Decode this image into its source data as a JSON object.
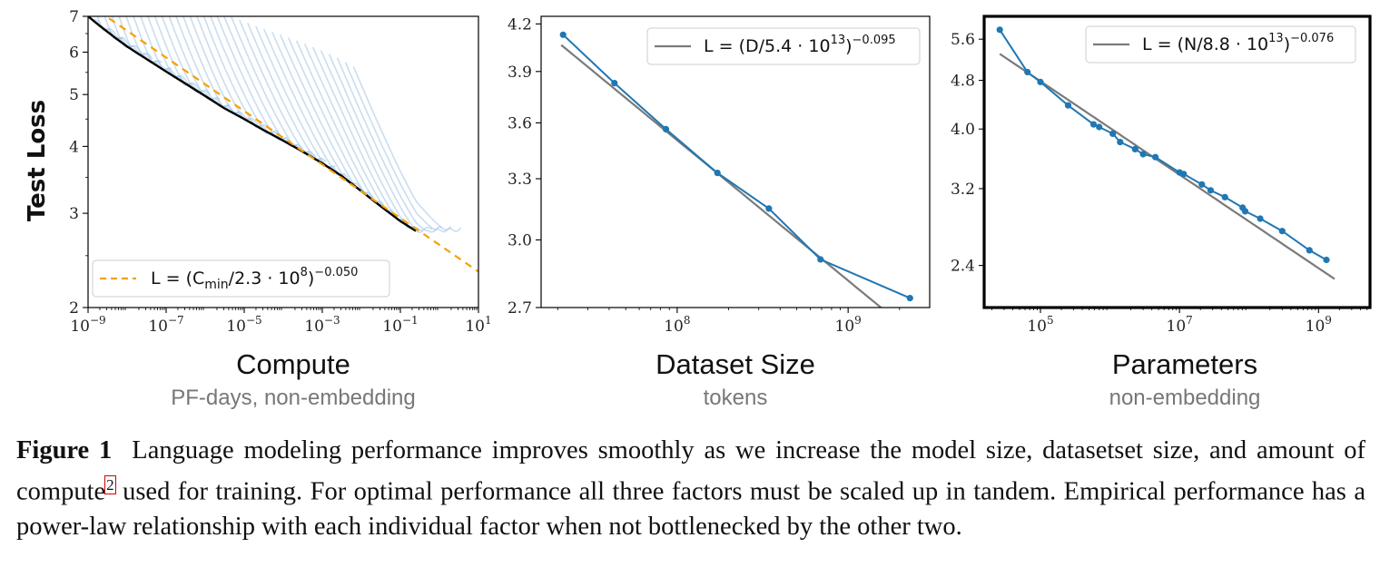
{
  "chart_data": [
    {
      "type": "line",
      "xscale": "log",
      "yscale": "log",
      "xlim": [
        1e-09,
        10
      ],
      "ylim": [
        2,
        7
      ],
      "xticks": [
        {
          "v": 1e-09,
          "b": "10",
          "e": "−9"
        },
        {
          "v": 1e-07,
          "b": "10",
          "e": "−7"
        },
        {
          "v": 1e-05,
          "b": "10",
          "e": "−5"
        },
        {
          "v": 0.001,
          "b": "10",
          "e": "−3"
        },
        {
          "v": 0.1,
          "b": "10",
          "e": "−1"
        },
        {
          "v": 10,
          "b": "10",
          "e": "1"
        }
      ],
      "yticks": [
        {
          "v": 2,
          "t": "2"
        },
        {
          "v": 3,
          "t": "3"
        },
        {
          "v": 4,
          "t": "4"
        },
        {
          "v": 5,
          "t": "5"
        },
        {
          "v": 6,
          "t": "6"
        },
        {
          "v": 7,
          "t": "7"
        }
      ],
      "ylabel": "Test Loss",
      "xlabel": "Compute",
      "xsub": "PF-days, non-embedding",
      "legend": {
        "position": "lower-left",
        "label": "L = (Cmin/2.3 · 10^8)^−0.050"
      },
      "legend_parts": {
        "pre": "L = (C",
        "sub": "min",
        "mid": "/2.3 · 10",
        "sup1": "8",
        "close": ")",
        "sup2": "−0.050"
      },
      "fit": {
        "name": "L = (Cmin/2.3 · 10^8)^−0.050",
        "coef": 230000000.0,
        "exp": -0.05,
        "style": "dashed",
        "color": "#f5a100"
      },
      "frontier": {
        "color": "#000000",
        "x": [
          1e-09,
          2e-09,
          5e-09,
          1e-08,
          2e-08,
          5e-08,
          1e-07,
          3e-07,
          1e-06,
          3e-06,
          1e-05,
          3e-05,
          0.0001,
          0.0003,
          0.001,
          0.003,
          0.01,
          0.03,
          0.1,
          0.25
        ],
        "y": [
          7.0,
          6.72,
          6.38,
          6.15,
          5.95,
          5.7,
          5.52,
          5.25,
          4.97,
          4.72,
          4.5,
          4.3,
          4.1,
          3.92,
          3.72,
          3.53,
          3.3,
          3.1,
          2.9,
          2.78
        ]
      },
      "run_curves": {
        "color": "#9cc3e4",
        "count": 36,
        "note": "individual training runs"
      }
    },
    {
      "type": "line",
      "xscale": "log",
      "yscale": "log",
      "xlim": [
        16000000.0,
        3000000000.0
      ],
      "ylim": [
        2.7,
        4.25
      ],
      "xticks": [
        {
          "v": 100000000.0,
          "b": "10",
          "e": "8"
        },
        {
          "v": 1000000000.0,
          "b": "10",
          "e": "9"
        }
      ],
      "yticks": [
        {
          "v": 2.7,
          "t": "2.7"
        },
        {
          "v": 3.0,
          "t": "3.0"
        },
        {
          "v": 3.3,
          "t": "3.3"
        },
        {
          "v": 3.6,
          "t": "3.6"
        },
        {
          "v": 3.9,
          "t": "3.9"
        },
        {
          "v": 4.2,
          "t": "4.2"
        }
      ],
      "xlabel": "Dataset Size",
      "xsub": "tokens",
      "legend": {
        "position": "top-right",
        "label": "L = (D/5.4 · 10^13)^−0.095"
      },
      "legend_parts": {
        "pre": "L = (D",
        "sub": "",
        "mid": "/5.4 · 10",
        "sup1": "13",
        "close": ")",
        "sup2": "−0.095"
      },
      "fit": {
        "name": "L = (D/5.4 · 10^13)^−0.095",
        "coef": 54000000000000.0,
        "exp": -0.095,
        "style": "solid",
        "color": "#7a7a7a",
        "xrange": [
          21000000.0,
          2300000000.0
        ]
      },
      "data": {
        "color": "#1f77b4",
        "x": [
          21500000.0,
          43000000.0,
          86000000.0,
          172000000.0,
          344000000.0,
          690000000.0,
          2300000000.0
        ],
        "y": [
          4.13,
          3.83,
          3.565,
          3.33,
          3.15,
          2.91,
          2.74
        ]
      }
    },
    {
      "type": "line",
      "xscale": "log",
      "yscale": "log",
      "xlim": [
        15500.0,
        5500000000.0
      ],
      "ylim": [
        2.05,
        6.1
      ],
      "xticks": [
        {
          "v": 100000.0,
          "b": "10",
          "e": "5"
        },
        {
          "v": 10000000.0,
          "b": "10",
          "e": "7"
        },
        {
          "v": 1000000000.0,
          "b": "10",
          "e": "9"
        }
      ],
      "yticks": [
        {
          "v": 2.4,
          "t": "2.4"
        },
        {
          "v": 3.2,
          "t": "3.2"
        },
        {
          "v": 4.0,
          "t": "4.0"
        },
        {
          "v": 4.8,
          "t": "4.8"
        },
        {
          "v": 5.6,
          "t": "5.6"
        }
      ],
      "xlabel": "Parameters",
      "xsub": "non-embedding",
      "legend": {
        "position": "top-right",
        "label": "L = (N/8.8 · 10^13)^−0.076"
      },
      "legend_parts": {
        "pre": "L = (N",
        "sub": "",
        "mid": "/8.8 · 10",
        "sup1": "13",
        "close": ")",
        "sup2": "−0.076"
      },
      "fit": {
        "name": "L = (N/8.8 · 10^13)^−0.076",
        "coef": 88000000000000.0,
        "exp": -0.076,
        "style": "solid",
        "color": "#7a7a7a",
        "xrange": [
          26000.0,
          1700000000.0
        ]
      },
      "data": {
        "color": "#1f77b4",
        "x": [
          26000.0,
          65000.0,
          100000.0,
          250000.0,
          580000.0,
          700000.0,
          1100000.0,
          1400000.0,
          2300000.0,
          3000000.0,
          4500000.0,
          10000000.0,
          11500000.0,
          21000000.0,
          28000000.0,
          45000000.0,
          81000000.0,
          88000000.0,
          145000000.0,
          300000000.0,
          740000000.0,
          1300000000.0
        ],
        "y": [
          5.8,
          4.95,
          4.77,
          4.37,
          4.07,
          4.03,
          3.93,
          3.81,
          3.71,
          3.64,
          3.6,
          3.4,
          3.38,
          3.25,
          3.18,
          3.1,
          2.98,
          2.94,
          2.86,
          2.73,
          2.54,
          2.45
        ]
      }
    }
  ],
  "caption": {
    "label": "Figure 1",
    "text_before": "Language modeling performance improves smoothly as we increase the model size, datasetset size, and amount of compute",
    "footnote": "2",
    "text_after": " used for training. For optimal performance all three factors must be scaled up in tandem. Empirical performance has a power-law relationship with each individual factor when not bottlenecked by the other two."
  }
}
